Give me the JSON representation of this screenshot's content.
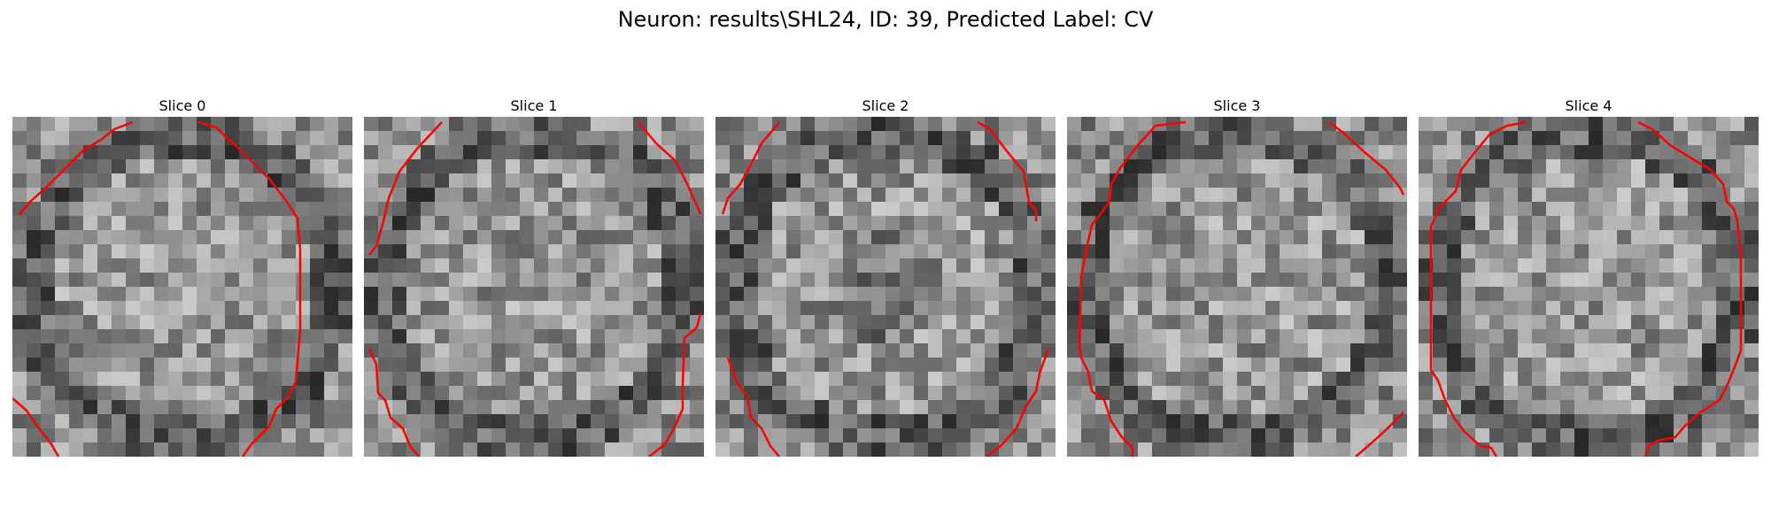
{
  "figure": {
    "title": "Neuron: results\\SHL24, ID: 39, Predicted Label: CV"
  },
  "panels": [
    {
      "title": "Slice 0"
    },
    {
      "title": "Slice 1"
    },
    {
      "title": "Slice 2"
    },
    {
      "title": "Slice 3"
    },
    {
      "title": "Slice 4"
    }
  ],
  "colors": {
    "contour": "#ff0000",
    "background": "#ffffff",
    "colormap": "grayscale"
  }
}
